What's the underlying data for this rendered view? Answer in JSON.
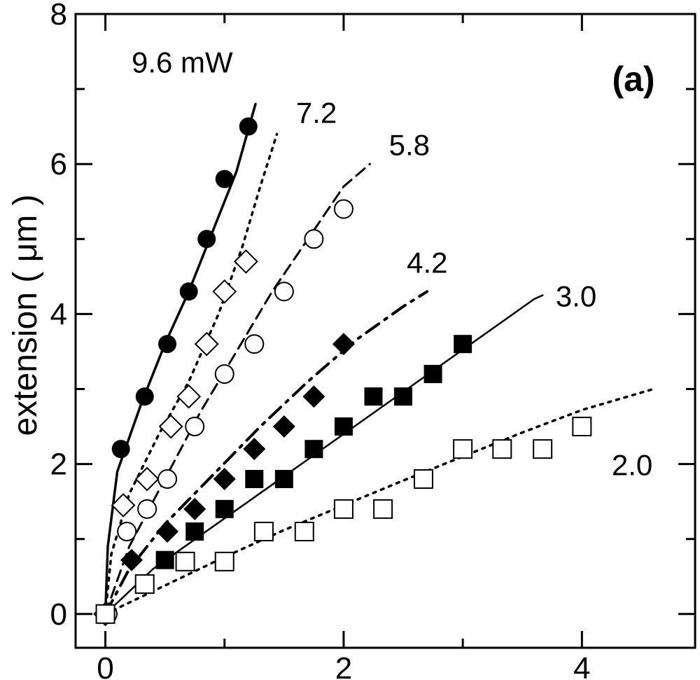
{
  "chart_data": {
    "type": "scatter",
    "title": "",
    "panel_label": "(a)",
    "xlabel": "",
    "ylabel": "extension ( μm )",
    "xlim": [
      -0.25,
      4.95
    ],
    "ylim": [
      -0.45,
      8
    ],
    "x_ticks": [
      0,
      2,
      4
    ],
    "x_tick_labels": [
      "0",
      "2",
      "4"
    ],
    "y_ticks": [
      0,
      2,
      4,
      6,
      8
    ],
    "y_tick_labels": [
      "0",
      "2",
      "4",
      "6",
      "8"
    ],
    "grid": false,
    "series": [
      {
        "name": "9.6 mW",
        "label": "9.6 mW",
        "marker": "circle-filled",
        "line": "solid",
        "points": [
          [
            0,
            0
          ],
          [
            0.13,
            2.2
          ],
          [
            0.33,
            2.9
          ],
          [
            0.52,
            3.6
          ],
          [
            0.7,
            4.3
          ],
          [
            0.85,
            5.0
          ],
          [
            1.0,
            5.8
          ],
          [
            1.2,
            6.5
          ]
        ],
        "fit": [
          [
            0,
            0
          ],
          [
            0.02,
            0.9
          ],
          [
            0.1,
            1.9
          ],
          [
            0.3,
            2.8
          ],
          [
            0.5,
            3.6
          ],
          [
            0.7,
            4.3
          ],
          [
            0.9,
            5.1
          ],
          [
            1.1,
            5.9
          ],
          [
            1.26,
            6.8
          ]
        ]
      },
      {
        "name": "7.2",
        "label": "7.2",
        "marker": "diamond-open",
        "line": "dotted",
        "points": [
          [
            0,
            0
          ],
          [
            0.15,
            1.45
          ],
          [
            0.35,
            1.8
          ],
          [
            0.55,
            2.5
          ],
          [
            0.7,
            2.9
          ],
          [
            0.85,
            3.6
          ],
          [
            1.0,
            4.3
          ],
          [
            1.18,
            4.7
          ]
        ],
        "fit": [
          [
            0,
            0
          ],
          [
            0.05,
            0.8
          ],
          [
            0.2,
            1.6
          ],
          [
            0.45,
            2.4
          ],
          [
            0.7,
            3.1
          ],
          [
            0.95,
            4.0
          ],
          [
            1.15,
            4.9
          ],
          [
            1.3,
            5.7
          ],
          [
            1.44,
            6.4
          ]
        ]
      },
      {
        "name": "5.8",
        "label": "5.8",
        "marker": "circle-open",
        "line": "dashed",
        "points": [
          [
            0.02,
            0
          ],
          [
            0.18,
            1.1
          ],
          [
            0.35,
            1.4
          ],
          [
            0.52,
            1.8
          ],
          [
            0.75,
            2.5
          ],
          [
            1.0,
            3.2
          ],
          [
            1.25,
            3.6
          ],
          [
            1.5,
            4.3
          ],
          [
            1.75,
            5.0
          ],
          [
            2.0,
            5.4
          ]
        ],
        "fit": [
          [
            0,
            0
          ],
          [
            0.2,
            0.9
          ],
          [
            0.5,
            1.8
          ],
          [
            0.8,
            2.7
          ],
          [
            1.1,
            3.5
          ],
          [
            1.4,
            4.3
          ],
          [
            1.7,
            5.0
          ],
          [
            2.0,
            5.7
          ],
          [
            2.22,
            6.0
          ]
        ]
      },
      {
        "name": "4.2",
        "label": "4.2",
        "marker": "diamond-filled",
        "line": "dash-dot",
        "points": [
          [
            0.22,
            0.72
          ],
          [
            0.52,
            1.1
          ],
          [
            0.75,
            1.4
          ],
          [
            1.0,
            1.8
          ],
          [
            1.25,
            2.2
          ],
          [
            1.5,
            2.5
          ],
          [
            1.75,
            2.9
          ],
          [
            2.0,
            3.6
          ]
        ],
        "fit": [
          [
            0,
            0
          ],
          [
            0.2,
            0.6
          ],
          [
            0.5,
            1.2
          ],
          [
            0.9,
            1.85
          ],
          [
            1.3,
            2.5
          ],
          [
            1.7,
            3.1
          ],
          [
            2.1,
            3.65
          ],
          [
            2.5,
            4.1
          ],
          [
            2.7,
            4.3
          ]
        ]
      },
      {
        "name": "3.0",
        "label": "3.0",
        "marker": "square-filled",
        "line": "solid-thin",
        "points": [
          [
            0.5,
            0.72
          ],
          [
            0.75,
            1.1
          ],
          [
            1.0,
            1.4
          ],
          [
            1.25,
            1.8
          ],
          [
            1.5,
            1.8
          ],
          [
            1.75,
            2.2
          ],
          [
            2.0,
            2.5
          ],
          [
            2.25,
            2.9
          ],
          [
            2.5,
            2.9
          ],
          [
            2.75,
            3.2
          ],
          [
            3.0,
            3.6
          ]
        ],
        "fit": [
          [
            0,
            0
          ],
          [
            0.4,
            0.6
          ],
          [
            0.8,
            1.05
          ],
          [
            1.2,
            1.5
          ],
          [
            1.6,
            1.95
          ],
          [
            2.0,
            2.4
          ],
          [
            2.4,
            2.85
          ],
          [
            2.8,
            3.3
          ],
          [
            3.2,
            3.75
          ],
          [
            3.6,
            4.2
          ],
          [
            3.67,
            4.25
          ]
        ]
      },
      {
        "name": "2.0",
        "label": "2.0",
        "marker": "square-open",
        "line": "dotted",
        "points": [
          [
            0,
            0
          ],
          [
            0.33,
            0.4
          ],
          [
            0.67,
            0.7
          ],
          [
            1.0,
            0.7
          ],
          [
            1.33,
            1.1
          ],
          [
            1.67,
            1.1
          ],
          [
            2.0,
            1.4
          ],
          [
            2.33,
            1.4
          ],
          [
            2.67,
            1.8
          ],
          [
            3.0,
            2.2
          ],
          [
            3.33,
            2.2
          ],
          [
            3.67,
            2.2
          ],
          [
            4.0,
            2.5
          ]
        ],
        "fit": [
          [
            0,
            0
          ],
          [
            0.5,
            0.38
          ],
          [
            1.0,
            0.76
          ],
          [
            1.5,
            1.12
          ],
          [
            2.0,
            1.45
          ],
          [
            2.5,
            1.78
          ],
          [
            3.0,
            2.1
          ],
          [
            3.5,
            2.42
          ],
          [
            4.0,
            2.72
          ],
          [
            4.6,
            3.0
          ]
        ]
      }
    ]
  }
}
